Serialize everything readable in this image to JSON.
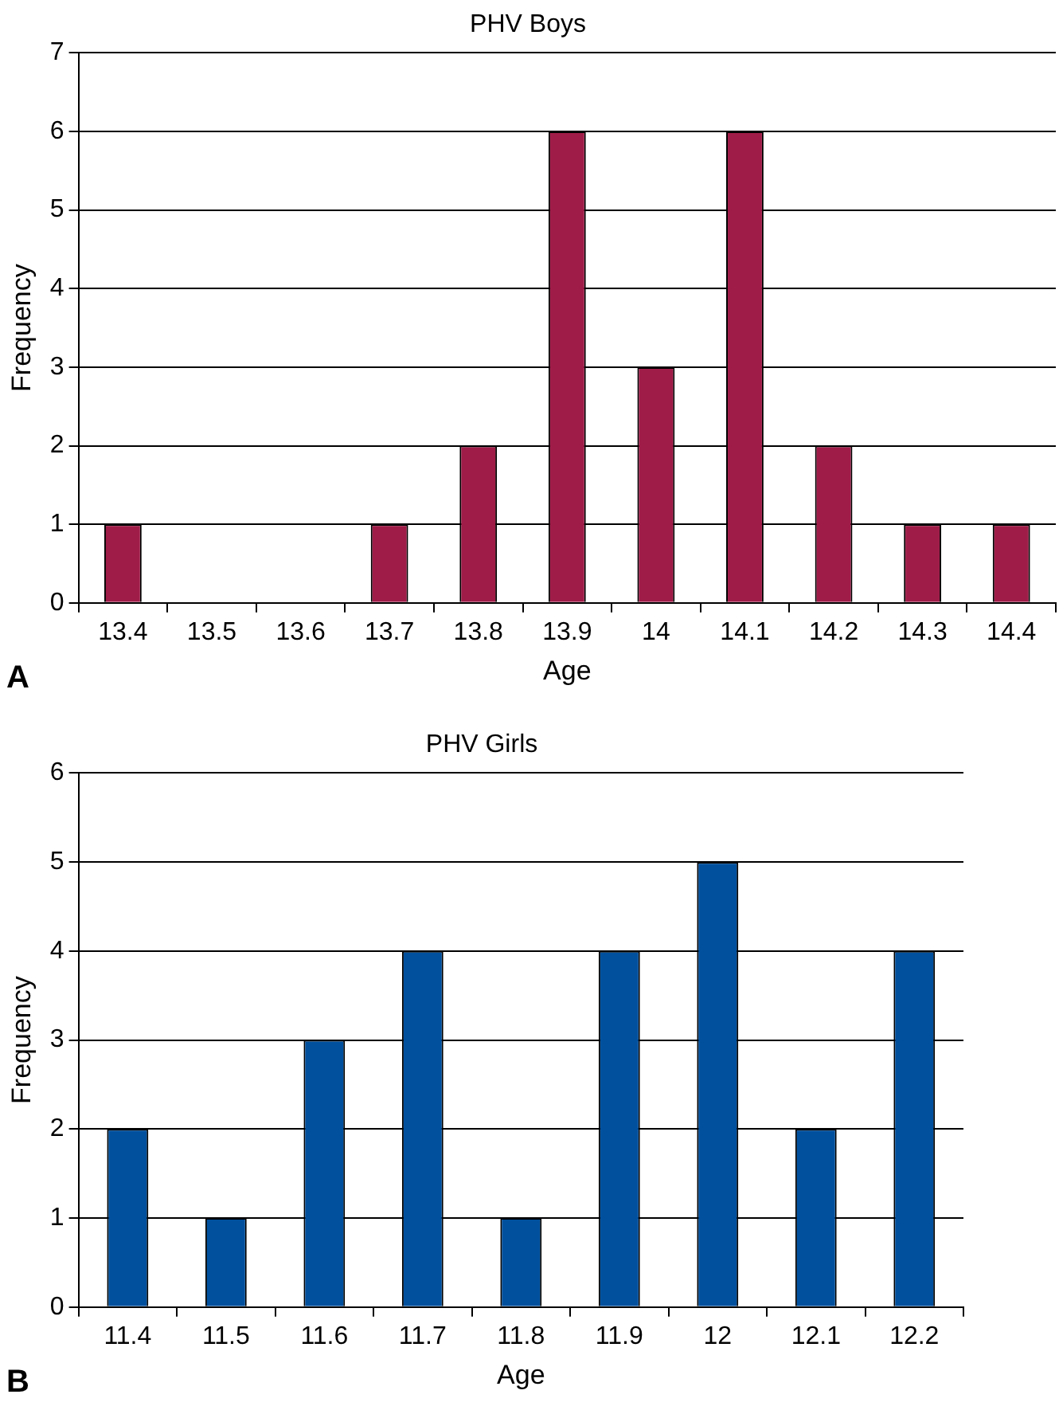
{
  "chart_data": [
    {
      "type": "bar",
      "title": "PHV Boys",
      "xlabel": "Age",
      "ylabel": "Frequency",
      "categories": [
        "13.4",
        "13.5",
        "13.6",
        "13.7",
        "13.8",
        "13.9",
        "14",
        "14.1",
        "14.2",
        "14.3",
        "14.4"
      ],
      "values": [
        1,
        0,
        0,
        1,
        2,
        6,
        3,
        6,
        2,
        1,
        1
      ],
      "color": "#a01c48",
      "ylim": [
        0,
        7
      ],
      "yticks": [
        0,
        1,
        2,
        3,
        4,
        5,
        6,
        7
      ],
      "grid": "y",
      "legend": false,
      "annotations": [
        "A"
      ]
    },
    {
      "type": "bar",
      "title": "PHV Girls",
      "xlabel": "Age",
      "ylabel": "Frequency",
      "categories": [
        "11.4",
        "11.5",
        "11.6",
        "11.7",
        "11.8",
        "11.9",
        "12",
        "12.1",
        "12.2"
      ],
      "values": [
        2,
        1,
        3,
        4,
        1,
        4,
        5,
        2,
        4
      ],
      "color": "#00509e",
      "ylim": [
        0,
        6
      ],
      "yticks": [
        0,
        1,
        2,
        3,
        4,
        5,
        6
      ],
      "grid": "y",
      "legend": false,
      "annotations": [
        "B"
      ]
    }
  ]
}
